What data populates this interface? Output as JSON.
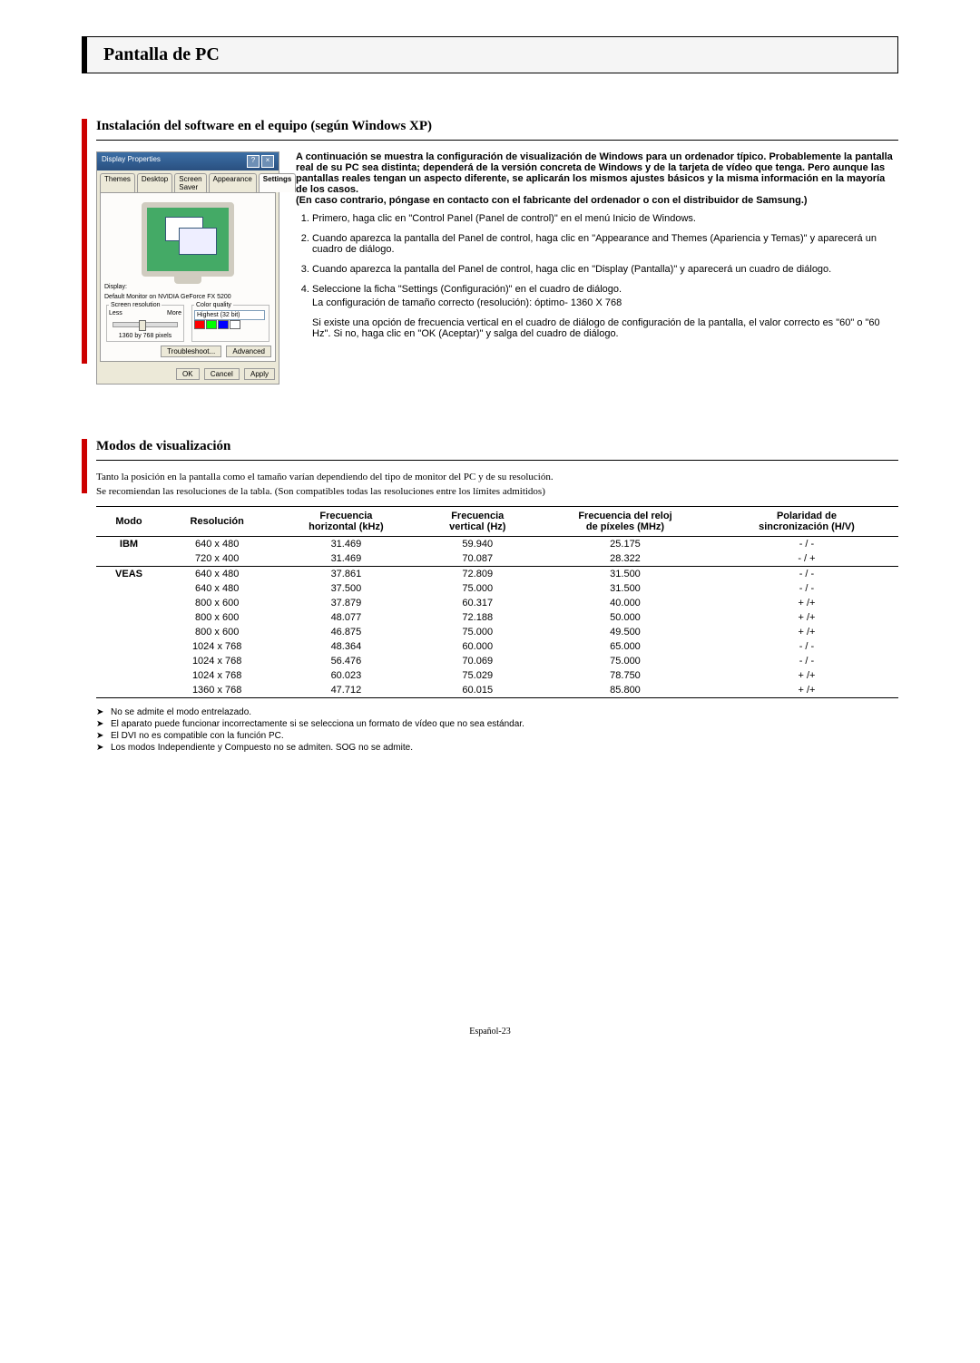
{
  "title": "Pantalla de PC",
  "section1": {
    "heading": "Instalación del software en el equipo (según Windows XP)",
    "intro": "A continuación se muestra la configuración de visualización de Windows para un ordenador típico. Probablemente la pantalla real de su PC sea distinta; dependerá de la versión concreta de Windows y de la tarjeta de vídeo que tenga. Pero aunque las pantallas reales tengan un aspecto diferente, se aplicarán los mismos ajustes básicos y la misma información en la mayoría de los casos.",
    "intro2": "(En caso contrario, póngase en contacto con el fabricante del ordenador o con el distribuidor de Samsung.)",
    "steps": [
      "Primero, haga clic en \"Control Panel (Panel de control)\" en el menú Inicio de Windows.",
      "Cuando aparezca la pantalla del Panel de control, haga clic en \"Appearance and Themes (Apariencia y Temas)\" y aparecerá un cuadro de diálogo.",
      "Cuando aparezca la pantalla del Panel de control, haga clic en \"Display (Pantalla)\" y aparecerá un cuadro de diálogo."
    ],
    "step4a": "Seleccione la ficha \"Settings (Configuración)\" en el cuadro de diálogo.",
    "step4b": "La configuración de tamaño correcto (resolución): óptimo- 1360 X 768",
    "extra": "Si existe una opción de frecuencia vertical en el cuadro de diálogo de configuración de la pantalla, el valor correcto es \"60\" o \"60 Hz\". Si no, haga clic en \"OK (Aceptar)\" y salga del cuadro de diálogo.",
    "dialog": {
      "title": "Display Properties",
      "tabs": [
        "Themes",
        "Desktop",
        "Screen Saver",
        "Appearance",
        "Settings"
      ],
      "display_label": "Display:",
      "display_value": "Default Monitor on NVIDIA GeForce FX 5200",
      "res_legend": "Screen resolution",
      "less": "Less",
      "more": "More",
      "res_value": "1360 by 768 pixels",
      "color_legend": "Color quality",
      "color_value": "Highest (32 bit)",
      "troubleshoot": "Troubleshoot...",
      "advanced": "Advanced",
      "ok": "OK",
      "cancel": "Cancel",
      "apply": "Apply"
    }
  },
  "section2": {
    "heading": "Modos de visualización",
    "p1": "Tanto la posición en la pantalla como el tamaño varían dependiendo del tipo de monitor del PC y de su resolución.",
    "p2": "Se recomiendan las resoluciones de la tabla. (Son compatibles todas las resoluciones entre los límites admitidos)",
    "columns": [
      "Modo",
      "Resolución",
      "Frecuencia horizontal (kHz)",
      "Frecuencia vertical (Hz)",
      "Frecuencia del reloj de píxeles (MHz)",
      "Polaridad de sincronización (H/V)"
    ],
    "col_h1": {
      "0": "Modo",
      "1": "Resolución",
      "2": "Frecuencia",
      "3": "Frecuencia",
      "4": "Frecuencia del reloj",
      "5": "Polaridad de"
    },
    "col_h2": {
      "0": "",
      "1": "",
      "2": "horizontal (kHz)",
      "3": "vertical (Hz)",
      "4": "de píxeles (MHz)",
      "5": "sincronización (H/V)"
    },
    "groups": [
      {
        "mode": "IBM",
        "rows": [
          [
            "640 x 480",
            "31.469",
            "59.940",
            "25.175",
            "- / -"
          ],
          [
            "720 x 400",
            "31.469",
            "70.087",
            "28.322",
            "- / +"
          ]
        ]
      },
      {
        "mode": "VEAS",
        "rows": [
          [
            "640 x 480",
            "37.861",
            "72.809",
            "31.500",
            "- / -"
          ],
          [
            "640 x 480",
            "37.500",
            "75.000",
            "31.500",
            "- / -"
          ],
          [
            "800 x 600",
            "37.879",
            "60.317",
            "40.000",
            "+ /+"
          ],
          [
            "800 x 600",
            "48.077",
            "72.188",
            "50.000",
            "+ /+"
          ],
          [
            "800 x 600",
            "46.875",
            "75.000",
            "49.500",
            "+ /+"
          ],
          [
            "1024 x 768",
            "48.364",
            "60.000",
            "65.000",
            "- / -"
          ],
          [
            "1024 x 768",
            "56.476",
            "70.069",
            "75.000",
            "- / -"
          ],
          [
            "1024 x 768",
            "60.023",
            "75.029",
            "78.750",
            "+ /+"
          ],
          [
            "1360 x 768",
            "47.712",
            "60.015",
            "85.800",
            "+ /+"
          ]
        ]
      }
    ],
    "notes": [
      "No se admite el modo entrelazado.",
      "El aparato puede funcionar incorrectamente si se selecciona un formato de vídeo que no sea estándar.",
      "El DVI no es compatible con la función PC.",
      "Los modos Independiente y Compuesto no se admiten. SOG no se admite."
    ]
  },
  "footer": "Español-23",
  "colors": {
    "red_bar": "#cc0000"
  }
}
